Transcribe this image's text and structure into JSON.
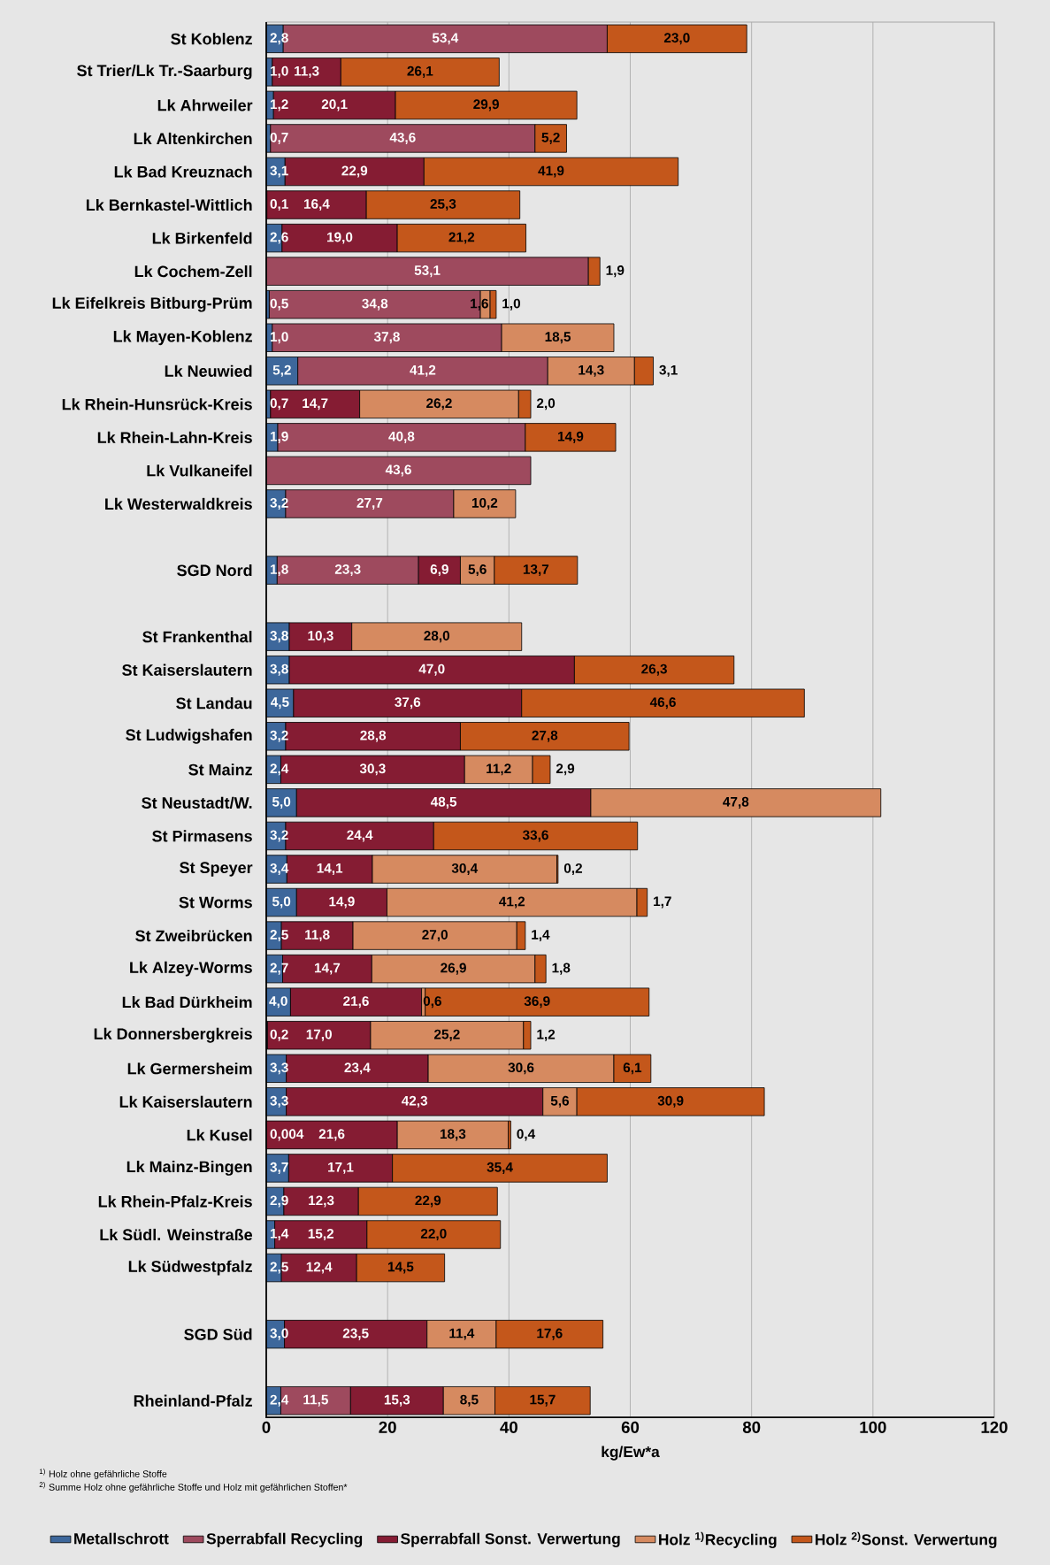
{
  "chart_data": {
    "type": "bar",
    "orientation": "horizontal",
    "stacked": true,
    "grid": "x",
    "legend": "bottom",
    "xlabel": "kg/Ew*a",
    "xlim": [
      0,
      120
    ],
    "xticks": [
      0,
      20,
      40,
      60,
      80,
      100,
      120
    ],
    "categories": [
      "St Koblenz",
      "St Trier/Lk Tr.-Saarburg",
      "Lk Ahrweiler",
      "Lk Altenkirchen",
      "Lk Bad Kreuznach",
      "Lk Bernkastel-Wittlich",
      "Lk Birkenfeld",
      "Lk Cochem-Zell",
      "Lk Eifelkreis Bitburg-Prüm",
      "Lk Mayen-Koblenz",
      "Lk Neuwied",
      "Lk Rhein-Hunsrück-Kreis",
      "Lk Rhein-Lahn-Kreis",
      "Lk Vulkaneifel",
      "Lk Westerwaldkreis",
      null,
      "SGD Nord",
      null,
      "St Frankenthal",
      "St Kaiserslautern",
      "St Landau",
      "St Ludwigshafen",
      "St Mainz",
      "St Neustadt/W.",
      "St Pirmasens",
      "St Speyer",
      "St Worms",
      "St Zweibrücken",
      "Lk Alzey-Worms",
      "Lk Bad Dürkheim",
      "Lk Donnersbergkreis",
      "Lk Germersheim",
      "Lk Kaiserslautern",
      "Lk Kusel",
      "Lk Mainz-Bingen",
      "Lk Rhein-Pfalz-Kreis",
      "Lk Südl. Weinstraße",
      "Lk Südwestpfalz",
      null,
      "SGD Süd",
      null,
      "Rheinland-Pfalz"
    ],
    "series": [
      {
        "name": "Metallschrott",
        "color": "#3d679b",
        "values": [
          2.8,
          1.0,
          1.2,
          0.7,
          3.1,
          0.1,
          2.6,
          null,
          0.5,
          1.0,
          5.2,
          0.7,
          1.9,
          null,
          3.2,
          null,
          1.8,
          null,
          3.8,
          3.8,
          4.5,
          3.2,
          2.4,
          5.0,
          3.2,
          3.4,
          5.0,
          2.5,
          2.7,
          4.0,
          0.2,
          3.3,
          3.3,
          0.004,
          3.7,
          2.9,
          1.4,
          2.5,
          null,
          3.0,
          null,
          2.4
        ],
        "value_labels": [
          "2,8",
          "1,0",
          "1,2",
          "0,7",
          "3,1",
          "0,1",
          "2,6",
          null,
          "0,5",
          "1,0",
          "5,2",
          "0,7",
          "1,9",
          null,
          "3,2",
          null,
          "1,8",
          null,
          "3,8",
          "3,8",
          "4,5",
          "3,2",
          "2,4",
          "5,0",
          "3,2",
          "3,4",
          "5,0",
          "2,5",
          "2,7",
          "4,0",
          "0,2",
          "3,3",
          "3,3",
          "0,004",
          "3,7",
          "2,9",
          "1,4",
          "2,5",
          null,
          "3,0",
          null,
          "2,4"
        ]
      },
      {
        "name": "Sperrabfall Recycling",
        "color": "#9e4a5e",
        "values": [
          53.4,
          null,
          null,
          43.6,
          null,
          null,
          null,
          53.1,
          34.8,
          37.8,
          41.2,
          null,
          40.8,
          43.6,
          27.7,
          null,
          23.3,
          null,
          null,
          null,
          null,
          null,
          null,
          null,
          null,
          null,
          null,
          null,
          null,
          null,
          null,
          null,
          null,
          null,
          null,
          null,
          null,
          null,
          null,
          null,
          null,
          11.5
        ],
        "value_labels": [
          "53,4",
          null,
          null,
          "43,6",
          null,
          null,
          null,
          "53,1",
          "34,8",
          "37,8",
          "41,2",
          null,
          "40,8",
          "43,6",
          "27,7",
          null,
          "23,3",
          null,
          null,
          null,
          null,
          null,
          null,
          null,
          null,
          null,
          null,
          null,
          null,
          null,
          null,
          null,
          null,
          null,
          null,
          null,
          null,
          null,
          null,
          null,
          null,
          "11,5"
        ]
      },
      {
        "name": "Sperrabfall Sonst. Verwertung",
        "color": "#851c33",
        "values": [
          null,
          11.3,
          20.1,
          null,
          22.9,
          16.4,
          19.0,
          null,
          null,
          null,
          null,
          14.7,
          null,
          null,
          null,
          null,
          6.9,
          null,
          10.3,
          47.0,
          37.6,
          28.8,
          30.3,
          48.5,
          24.4,
          14.1,
          14.9,
          11.8,
          14.7,
          21.6,
          17.0,
          23.4,
          42.3,
          21.6,
          17.1,
          12.3,
          15.2,
          12.4,
          null,
          23.5,
          null,
          15.3
        ],
        "value_labels": [
          null,
          "11,3",
          "20,1",
          null,
          "22,9",
          "16,4",
          "19,0",
          null,
          null,
          null,
          null,
          "14,7",
          null,
          null,
          null,
          null,
          "6,9",
          null,
          "10,3",
          "47,0",
          "37,6",
          "28,8",
          "30,3",
          "48,5",
          "24,4",
          "14,1",
          "14,9",
          "11,8",
          "14,7",
          "21,6",
          "17,0",
          "23,4",
          "42,3",
          "21,6",
          "17,1",
          "12,3",
          "15,2",
          "12,4",
          null,
          "23,5",
          null,
          "15,3"
        ]
      },
      {
        "name": "Holz $^{1)}$Recycling",
        "color": "#d68a60",
        "values": [
          null,
          null,
          null,
          null,
          null,
          null,
          null,
          null,
          1.6,
          18.5,
          14.3,
          26.2,
          null,
          null,
          10.2,
          null,
          5.6,
          null,
          28.0,
          null,
          null,
          null,
          11.2,
          47.8,
          null,
          30.4,
          41.2,
          27.0,
          26.9,
          0.6,
          25.2,
          30.6,
          5.6,
          18.3,
          null,
          null,
          null,
          null,
          null,
          11.4,
          null,
          8.5
        ],
        "value_labels": [
          null,
          null,
          null,
          null,
          null,
          null,
          null,
          null,
          "1,6",
          "18,5",
          "14,3",
          "26,2",
          null,
          null,
          "10,2",
          null,
          "5,6",
          null,
          "28,0",
          null,
          null,
          null,
          "11,2",
          "47,8",
          null,
          "30,4",
          "41,2",
          "27,0",
          "26,9",
          "0,6",
          "25,2",
          "30,6",
          "5,6",
          "18,3",
          null,
          null,
          null,
          null,
          null,
          "11,4",
          null,
          "8,5"
        ]
      },
      {
        "name": "Holz $^{2)}$Sonst. Verwertung",
        "color": "#c4571b",
        "values": [
          23.0,
          26.1,
          29.9,
          5.2,
          41.9,
          25.3,
          21.2,
          1.9,
          1.0,
          null,
          3.1,
          2.0,
          14.9,
          null,
          null,
          null,
          13.7,
          null,
          null,
          26.3,
          46.6,
          27.8,
          2.9,
          null,
          33.6,
          0.2,
          1.7,
          1.4,
          1.8,
          36.9,
          1.2,
          6.1,
          30.9,
          0.4,
          35.4,
          22.9,
          22.0,
          14.5,
          null,
          17.6,
          null,
          15.7
        ],
        "value_labels": [
          "23,0",
          "26,1",
          "29,9",
          "5,2",
          "41,9",
          "25,3",
          "21,2",
          "1,9",
          "1,0",
          null,
          "3,1",
          "2,0",
          "14,9",
          null,
          null,
          null,
          "13,7",
          null,
          null,
          "26,3",
          "46,6",
          "27,8",
          "2,9",
          null,
          "33,6",
          "0,2",
          "1,7",
          "1,4",
          "1,8",
          "36,9",
          "1,2",
          "6,1",
          "30,9",
          "0,4",
          "35,4",
          "22,9",
          "22,0",
          "14,5",
          null,
          "17,6",
          null,
          "15,7"
        ]
      }
    ],
    "annotations": [
      "$^{1)}$ Holz ohne gefährliche Stoffe",
      "$^{2)}$ Summe Holz ohne gefährliche Stoffe und Holz mit gefährlichen Stoffen*"
    ]
  }
}
